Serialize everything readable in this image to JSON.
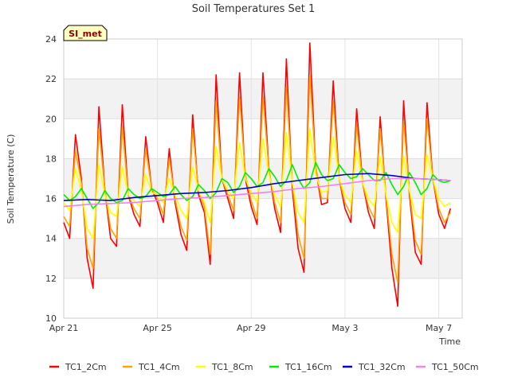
{
  "chart_data": {
    "type": "line",
    "title": "Soil Temperatures Set 1",
    "xlabel": "Time",
    "ylabel": "Soil Temperature (C)",
    "badge": "SI_met",
    "xlim": [
      "2024-04-21",
      "2024-05-08"
    ],
    "ylim": [
      10,
      24
    ],
    "yticks": [
      10,
      12,
      14,
      16,
      18,
      20,
      22,
      24
    ],
    "xticks": [
      {
        "date": "2024-04-21",
        "label": "Apr 21"
      },
      {
        "date": "2024-04-25",
        "label": "Apr 25"
      },
      {
        "date": "2024-04-29",
        "label": "Apr 29"
      },
      {
        "date": "2024-05-03",
        "label": "May 3"
      },
      {
        "date": "2024-05-07",
        "label": "May 7"
      }
    ],
    "grid": true,
    "legend_position": "bottom",
    "series": [
      {
        "name": "TC1_2Cm",
        "color": "#ff0000",
        "x": [
          "2024-04-21 00:00",
          "2024-04-21 06:00",
          "2024-04-21 12:00",
          "2024-04-21 18:00",
          "2024-04-22 00:00",
          "2024-04-22 06:00",
          "2024-04-22 12:00",
          "2024-04-22 18:00",
          "2024-04-23 00:00",
          "2024-04-23 06:00",
          "2024-04-23 12:00",
          "2024-04-23 18:00",
          "2024-04-24 00:00",
          "2024-04-24 06:00",
          "2024-04-24 12:00",
          "2024-04-24 18:00",
          "2024-04-25 00:00",
          "2024-04-25 06:00",
          "2024-04-25 12:00",
          "2024-04-25 18:00",
          "2024-04-26 00:00",
          "2024-04-26 06:00",
          "2024-04-26 12:00",
          "2024-04-26 18:00",
          "2024-04-27 00:00",
          "2024-04-27 06:00",
          "2024-04-27 12:00",
          "2024-04-27 18:00",
          "2024-04-28 00:00",
          "2024-04-28 06:00",
          "2024-04-28 12:00",
          "2024-04-28 18:00",
          "2024-04-29 00:00",
          "2024-04-29 06:00",
          "2024-04-29 12:00",
          "2024-04-29 18:00",
          "2024-04-30 00:00",
          "2024-04-30 06:00",
          "2024-04-30 12:00",
          "2024-04-30 18:00",
          "2024-05-01 00:00",
          "2024-05-01 06:00",
          "2024-05-01 12:00",
          "2024-05-01 18:00",
          "2024-05-02 00:00",
          "2024-05-02 06:00",
          "2024-05-02 12:00",
          "2024-05-02 18:00",
          "2024-05-03 00:00",
          "2024-05-03 06:00",
          "2024-05-03 12:00",
          "2024-05-03 18:00",
          "2024-05-04 00:00",
          "2024-05-04 06:00",
          "2024-05-04 12:00",
          "2024-05-04 18:00",
          "2024-05-05 00:00",
          "2024-05-05 06:00",
          "2024-05-05 12:00",
          "2024-05-05 18:00",
          "2024-05-06 00:00",
          "2024-05-06 06:00",
          "2024-05-06 12:00",
          "2024-05-06 18:00",
          "2024-05-07 00:00",
          "2024-05-07 06:00",
          "2024-05-07 12:00"
        ],
        "y": [
          14.8,
          14.0,
          19.2,
          17.0,
          13.0,
          11.5,
          20.6,
          16.5,
          14.0,
          13.6,
          20.7,
          16.2,
          15.2,
          14.6,
          19.1,
          16.5,
          15.8,
          14.8,
          18.5,
          15.8,
          14.2,
          13.4,
          20.2,
          16.2,
          15.3,
          12.7,
          22.2,
          17.0,
          16.0,
          15.0,
          22.3,
          17.0,
          15.6,
          14.7,
          22.3,
          17.5,
          15.5,
          14.3,
          23.0,
          16.5,
          13.5,
          12.3,
          23.8,
          17.5,
          15.7,
          15.8,
          21.9,
          17.0,
          15.5,
          14.8,
          20.5,
          16.8,
          15.3,
          14.5,
          20.1,
          16.0,
          12.5,
          10.6,
          20.9,
          16.2,
          13.3,
          12.7,
          20.8,
          17.0,
          15.2,
          14.5,
          15.5
        ]
      },
      {
        "name": "TC1_4Cm",
        "color": "#ffa500",
        "x": [
          "2024-04-21 00:00",
          "2024-04-21 06:00",
          "2024-04-21 12:00",
          "2024-04-21 18:00",
          "2024-04-22 00:00",
          "2024-04-22 06:00",
          "2024-04-22 12:00",
          "2024-04-22 18:00",
          "2024-04-23 00:00",
          "2024-04-23 06:00",
          "2024-04-23 12:00",
          "2024-04-23 18:00",
          "2024-04-24 00:00",
          "2024-04-24 06:00",
          "2024-04-24 12:00",
          "2024-04-24 18:00",
          "2024-04-25 00:00",
          "2024-04-25 06:00",
          "2024-04-25 12:00",
          "2024-04-25 18:00",
          "2024-04-26 00:00",
          "2024-04-26 06:00",
          "2024-04-26 12:00",
          "2024-04-26 18:00",
          "2024-04-27 00:00",
          "2024-04-27 06:00",
          "2024-04-27 12:00",
          "2024-04-27 18:00",
          "2024-04-28 00:00",
          "2024-04-28 06:00",
          "2024-04-28 12:00",
          "2024-04-28 18:00",
          "2024-04-29 00:00",
          "2024-04-29 06:00",
          "2024-04-29 12:00",
          "2024-04-29 18:00",
          "2024-04-30 00:00",
          "2024-04-30 06:00",
          "2024-04-30 12:00",
          "2024-04-30 18:00",
          "2024-05-01 00:00",
          "2024-05-01 06:00",
          "2024-05-01 12:00",
          "2024-05-01 18:00",
          "2024-05-02 00:00",
          "2024-05-02 06:00",
          "2024-05-02 12:00",
          "2024-05-02 18:00",
          "2024-05-03 00:00",
          "2024-05-03 06:00",
          "2024-05-03 12:00",
          "2024-05-03 18:00",
          "2024-05-04 00:00",
          "2024-05-04 06:00",
          "2024-05-04 12:00",
          "2024-05-04 18:00",
          "2024-05-05 00:00",
          "2024-05-05 06:00",
          "2024-05-05 12:00",
          "2024-05-05 18:00",
          "2024-05-06 00:00",
          "2024-05-06 06:00",
          "2024-05-06 12:00",
          "2024-05-06 18:00",
          "2024-05-07 00:00",
          "2024-05-07 06:00",
          "2024-05-07 12:00"
        ],
        "y": [
          15.1,
          14.6,
          18.4,
          16.8,
          13.5,
          12.5,
          19.5,
          16.5,
          14.5,
          14.0,
          19.6,
          16.2,
          15.5,
          15.0,
          18.5,
          16.5,
          16.0,
          15.2,
          18.0,
          16.0,
          14.6,
          13.9,
          19.5,
          16.4,
          15.6,
          13.2,
          20.9,
          17.0,
          16.2,
          15.4,
          21.1,
          17.2,
          15.9,
          15.0,
          21.1,
          17.5,
          15.8,
          14.8,
          21.6,
          16.8,
          14.2,
          13.0,
          22.2,
          17.6,
          16.0,
          16.0,
          20.9,
          17.0,
          15.8,
          15.2,
          19.7,
          16.8,
          15.6,
          15.0,
          19.5,
          16.2,
          13.2,
          11.8,
          19.9,
          16.4,
          13.9,
          13.2,
          20.0,
          17.0,
          15.5,
          14.8,
          15.3
        ]
      },
      {
        "name": "TC1_8Cm",
        "color": "#ffff00",
        "x": [
          "2024-04-21 00:00",
          "2024-04-21 06:00",
          "2024-04-21 12:00",
          "2024-04-21 18:00",
          "2024-04-22 00:00",
          "2024-04-22 06:00",
          "2024-04-22 12:00",
          "2024-04-22 18:00",
          "2024-04-23 00:00",
          "2024-04-23 06:00",
          "2024-04-23 12:00",
          "2024-04-23 18:00",
          "2024-04-24 00:00",
          "2024-04-24 06:00",
          "2024-04-24 12:00",
          "2024-04-24 18:00",
          "2024-04-25 00:00",
          "2024-04-25 06:00",
          "2024-04-25 12:00",
          "2024-04-25 18:00",
          "2024-04-26 00:00",
          "2024-04-26 06:00",
          "2024-04-26 12:00",
          "2024-04-26 18:00",
          "2024-04-27 00:00",
          "2024-04-27 06:00",
          "2024-04-27 12:00",
          "2024-04-27 18:00",
          "2024-04-28 00:00",
          "2024-04-28 06:00",
          "2024-04-28 12:00",
          "2024-04-28 18:00",
          "2024-04-29 00:00",
          "2024-04-29 06:00",
          "2024-04-29 12:00",
          "2024-04-29 18:00",
          "2024-04-30 00:00",
          "2024-04-30 06:00",
          "2024-04-30 12:00",
          "2024-04-30 18:00",
          "2024-05-01 00:00",
          "2024-05-01 06:00",
          "2024-05-01 12:00",
          "2024-05-01 18:00",
          "2024-05-02 00:00",
          "2024-05-02 06:00",
          "2024-05-02 12:00",
          "2024-05-02 18:00",
          "2024-05-03 00:00",
          "2024-05-03 06:00",
          "2024-05-03 12:00",
          "2024-05-03 18:00",
          "2024-05-04 00:00",
          "2024-05-04 06:00",
          "2024-05-04 12:00",
          "2024-05-04 18:00",
          "2024-05-05 00:00",
          "2024-05-05 06:00",
          "2024-05-05 12:00",
          "2024-05-05 18:00",
          "2024-05-06 00:00",
          "2024-05-06 06:00",
          "2024-05-06 12:00",
          "2024-05-06 18:00",
          "2024-05-07 00:00",
          "2024-05-07 06:00",
          "2024-05-07 12:00"
        ],
        "y": [
          15.8,
          15.4,
          17.5,
          16.4,
          14.5,
          14.0,
          17.7,
          16.2,
          15.3,
          15.1,
          17.6,
          16.2,
          15.9,
          15.6,
          17.2,
          16.3,
          16.2,
          15.8,
          17.0,
          16.2,
          15.4,
          15.0,
          17.6,
          16.4,
          15.8,
          14.8,
          18.6,
          17.0,
          16.4,
          16.0,
          18.8,
          17.0,
          16.3,
          15.8,
          19.0,
          17.2,
          16.2,
          15.6,
          19.3,
          16.8,
          15.3,
          14.8,
          19.5,
          17.2,
          16.3,
          16.4,
          19.1,
          17.0,
          16.2,
          15.8,
          18.4,
          16.8,
          16.0,
          15.6,
          18.1,
          16.2,
          14.8,
          14.3,
          18.1,
          16.4,
          15.2,
          15.0,
          18.2,
          17.0,
          16.0,
          15.6,
          15.8
        ]
      },
      {
        "name": "TC1_16Cm",
        "color": "#00ee00",
        "x": [
          "2024-04-21 00:00",
          "2024-04-21 06:00",
          "2024-04-21 12:00",
          "2024-04-21 18:00",
          "2024-04-22 00:00",
          "2024-04-22 06:00",
          "2024-04-22 12:00",
          "2024-04-22 18:00",
          "2024-04-23 00:00",
          "2024-04-23 06:00",
          "2024-04-23 12:00",
          "2024-04-23 18:00",
          "2024-04-24 00:00",
          "2024-04-24 06:00",
          "2024-04-24 12:00",
          "2024-04-24 18:00",
          "2024-04-25 00:00",
          "2024-04-25 06:00",
          "2024-04-25 12:00",
          "2024-04-25 18:00",
          "2024-04-26 00:00",
          "2024-04-26 06:00",
          "2024-04-26 12:00",
          "2024-04-26 18:00",
          "2024-04-27 00:00",
          "2024-04-27 06:00",
          "2024-04-27 12:00",
          "2024-04-27 18:00",
          "2024-04-28 00:00",
          "2024-04-28 06:00",
          "2024-04-28 12:00",
          "2024-04-28 18:00",
          "2024-04-29 00:00",
          "2024-04-29 06:00",
          "2024-04-29 12:00",
          "2024-04-29 18:00",
          "2024-04-30 00:00",
          "2024-04-30 06:00",
          "2024-04-30 12:00",
          "2024-04-30 18:00",
          "2024-05-01 00:00",
          "2024-05-01 06:00",
          "2024-05-01 12:00",
          "2024-05-01 18:00",
          "2024-05-02 00:00",
          "2024-05-02 06:00",
          "2024-05-02 12:00",
          "2024-05-02 18:00",
          "2024-05-03 00:00",
          "2024-05-03 06:00",
          "2024-05-03 12:00",
          "2024-05-03 18:00",
          "2024-05-04 00:00",
          "2024-05-04 06:00",
          "2024-05-04 12:00",
          "2024-05-04 18:00",
          "2024-05-05 00:00",
          "2024-05-05 06:00",
          "2024-05-05 12:00",
          "2024-05-05 18:00",
          "2024-05-06 00:00",
          "2024-05-06 06:00",
          "2024-05-06 12:00",
          "2024-05-06 18:00",
          "2024-05-07 00:00",
          "2024-05-07 06:00",
          "2024-05-07 12:00"
        ],
        "y": [
          16.2,
          15.9,
          16.1,
          16.5,
          16.0,
          15.5,
          15.8,
          16.4,
          16.0,
          15.8,
          15.9,
          16.5,
          16.2,
          16.0,
          16.1,
          16.5,
          16.3,
          16.1,
          16.2,
          16.6,
          16.2,
          15.9,
          16.1,
          16.7,
          16.4,
          16.0,
          16.3,
          17.0,
          16.8,
          16.3,
          16.6,
          17.3,
          17.0,
          16.6,
          16.8,
          17.5,
          17.1,
          16.6,
          16.9,
          17.7,
          17.0,
          16.5,
          16.8,
          17.8,
          17.2,
          16.9,
          17.0,
          17.7,
          17.3,
          17.0,
          17.1,
          17.5,
          17.2,
          16.9,
          16.9,
          17.3,
          16.7,
          16.2,
          16.6,
          17.3,
          16.8,
          16.2,
          16.5,
          17.2,
          16.9,
          16.8,
          16.9
        ]
      },
      {
        "name": "TC1_32Cm",
        "color": "#0000cd",
        "x": [
          "2024-04-21 00:00",
          "2024-04-22 00:00",
          "2024-04-23 00:00",
          "2024-04-24 00:00",
          "2024-04-25 00:00",
          "2024-04-26 00:00",
          "2024-04-27 00:00",
          "2024-04-28 00:00",
          "2024-04-29 00:00",
          "2024-04-30 00:00",
          "2024-05-01 00:00",
          "2024-05-02 00:00",
          "2024-05-03 00:00",
          "2024-05-04 00:00",
          "2024-05-05 00:00",
          "2024-05-06 00:00",
          "2024-05-07 00:00",
          "2024-05-07 12:00"
        ],
        "y": [
          15.9,
          15.95,
          15.9,
          16.05,
          16.15,
          16.25,
          16.3,
          16.4,
          16.55,
          16.75,
          16.9,
          17.05,
          17.2,
          17.25,
          17.15,
          17.0,
          16.95,
          16.9
        ]
      },
      {
        "name": "TC1_50Cm",
        "color": "#ee82ee",
        "x": [
          "2024-04-21 00:00",
          "2024-04-22 00:00",
          "2024-04-23 00:00",
          "2024-04-24 00:00",
          "2024-04-25 00:00",
          "2024-04-26 00:00",
          "2024-04-27 00:00",
          "2024-04-28 00:00",
          "2024-04-29 00:00",
          "2024-04-30 00:00",
          "2024-05-01 00:00",
          "2024-05-02 00:00",
          "2024-05-03 00:00",
          "2024-05-04 00:00",
          "2024-05-05 00:00",
          "2024-05-06 00:00",
          "2024-05-07 00:00",
          "2024-05-07 12:00"
        ],
        "y": [
          15.6,
          15.7,
          15.75,
          15.8,
          15.9,
          16.0,
          16.05,
          16.15,
          16.25,
          16.35,
          16.5,
          16.6,
          16.75,
          16.9,
          17.0,
          17.0,
          16.95,
          16.9
        ]
      }
    ]
  }
}
